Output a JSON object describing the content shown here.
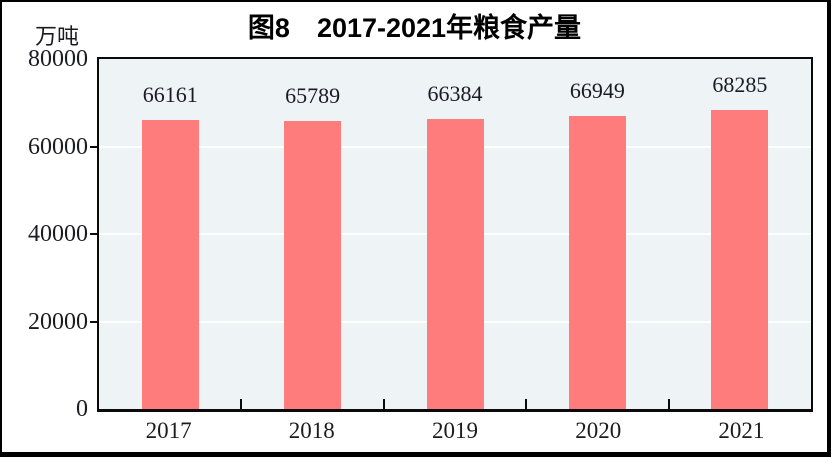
{
  "chart_data": {
    "type": "bar",
    "title": "图8　2017-2021年粮食产量",
    "unit_label": "万吨",
    "categories": [
      "2017",
      "2018",
      "2019",
      "2020",
      "2021"
    ],
    "values": [
      66161,
      65789,
      66384,
      66949,
      68285
    ],
    "xlabel": "",
    "ylabel": "万吨",
    "ylim": [
      0,
      80000
    ],
    "yticks": [
      0,
      20000,
      40000,
      60000,
      80000
    ],
    "gridlines_at": [
      20000,
      40000,
      60000
    ],
    "grid": "horizontal-white-on",
    "legend": "none",
    "bar_color": "#FF7C7C",
    "plot_background": "#EEF3F6",
    "gridline_color": "#FFFFFF",
    "axis_color": "#0A0A0A",
    "text_color": "#1B1B22"
  }
}
